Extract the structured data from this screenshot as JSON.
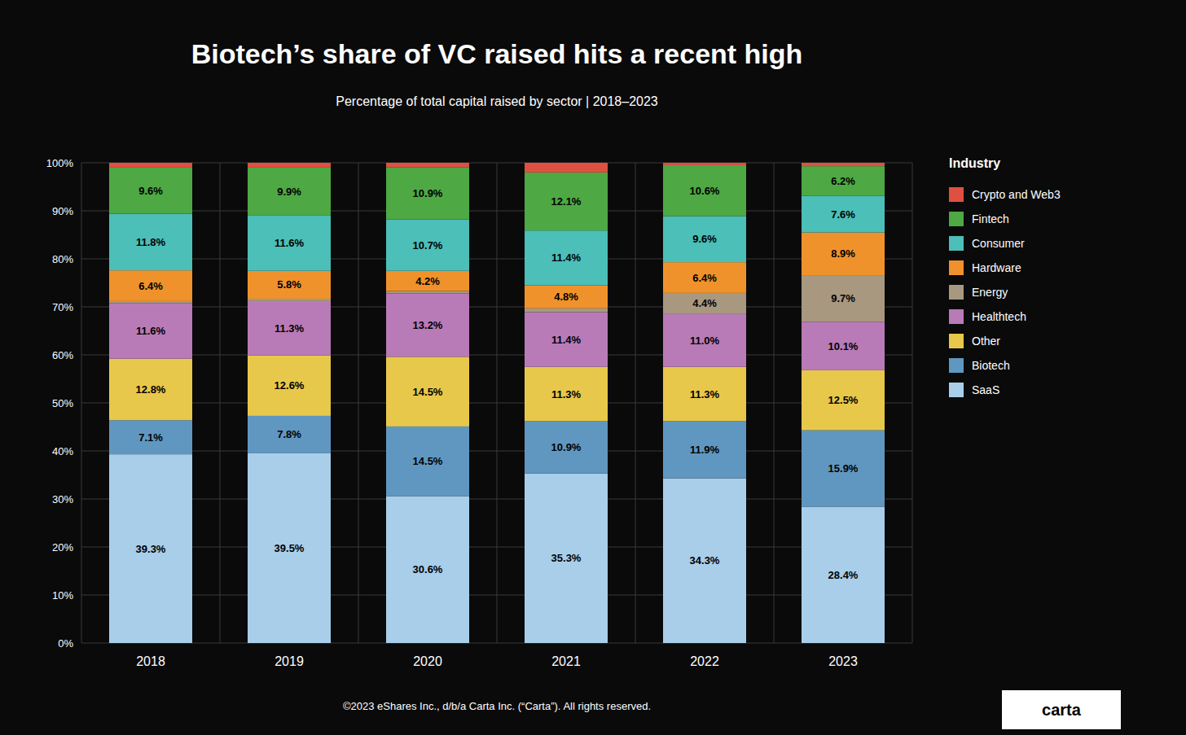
{
  "chart_data": {
    "type": "bar",
    "stacked": true,
    "title": "Biotech’s share of VC raised hits a recent high",
    "subtitle": "Percentage of total capital raised by sector | 2018–2023",
    "annotations": [
      "©2023 eShares Inc., d/b/a Carta Inc. (“Carta”). All rights reserved.",
      "carta"
    ],
    "legend_title": "Industry",
    "legend": "right",
    "grid": true,
    "data_labels": true,
    "categories": [
      "2018",
      "2019",
      "2020",
      "2021",
      "2022",
      "2023"
    ],
    "ylim": [
      0,
      100
    ],
    "yticks": [
      {
        "value": 0,
        "label": "0%"
      },
      {
        "value": 10,
        "label": "10%"
      },
      {
        "value": 20,
        "label": "20%"
      },
      {
        "value": 30,
        "label": "30%"
      },
      {
        "value": 40,
        "label": "40%"
      },
      {
        "value": 50,
        "label": "50%"
      },
      {
        "value": 60,
        "label": "60%"
      },
      {
        "value": 70,
        "label": "70%"
      },
      {
        "value": 80,
        "label": "80%"
      },
      {
        "value": 90,
        "label": "90%"
      },
      {
        "value": 100,
        "label": "100%"
      }
    ],
    "series": [
      {
        "name": "SaaS",
        "color": "#A8CEEA",
        "values": [
          39.3,
          39.5,
          30.6,
          35.3,
          34.3,
          28.4
        ],
        "value_labels": [
          "39.3%",
          "39.5%",
          "30.6%",
          "35.3%",
          "34.3%",
          "28.4%"
        ]
      },
      {
        "name": "Biotech",
        "color": "#6097C0",
        "values": [
          7.1,
          7.8,
          14.5,
          10.9,
          11.9,
          15.9
        ],
        "value_labels": [
          "7.1%",
          "7.8%",
          "14.5%",
          "10.9%",
          "11.9%",
          "15.9%"
        ]
      },
      {
        "name": "Other",
        "color": "#E8C84A",
        "values": [
          12.8,
          12.6,
          14.5,
          11.3,
          11.3,
          12.5
        ],
        "value_labels": [
          "12.8%",
          "12.6%",
          "14.5%",
          "11.3%",
          "11.3%",
          "12.5%"
        ]
      },
      {
        "name": "Healthtech",
        "color": "#B87BB8",
        "values": [
          11.6,
          11.3,
          13.2,
          11.4,
          11.0,
          10.1
        ],
        "value_labels": [
          "11.6%",
          "11.3%",
          "13.2%",
          "11.4%",
          "11.0%",
          "10.1%"
        ]
      },
      {
        "name": "Energy",
        "color": "#A89880",
        "values": [
          0.4,
          0.5,
          0.5,
          0.8,
          4.4,
          9.7
        ],
        "value_labels": [
          null,
          null,
          null,
          null,
          "4.4%",
          "9.7%"
        ]
      },
      {
        "name": "Hardware",
        "color": "#F0922B",
        "values": [
          6.4,
          5.8,
          4.2,
          4.8,
          6.4,
          8.9
        ],
        "value_labels": [
          "6.4%",
          "5.8%",
          "4.2%",
          "4.8%",
          "6.4%",
          "8.9%"
        ]
      },
      {
        "name": "Consumer",
        "color": "#4BBFB8",
        "values": [
          11.8,
          11.6,
          10.7,
          11.4,
          9.6,
          7.6
        ],
        "value_labels": [
          "11.8%",
          "11.6%",
          "10.7%",
          "11.4%",
          "9.6%",
          "7.6%"
        ]
      },
      {
        "name": "Fintech",
        "color": "#4EA843",
        "values": [
          9.6,
          9.9,
          10.9,
          12.1,
          10.6,
          6.2
        ],
        "value_labels": [
          "9.6%",
          "9.9%",
          "10.9%",
          "12.1%",
          "10.6%",
          "6.2%"
        ]
      },
      {
        "name": "Crypto and Web3",
        "color": "#E05040",
        "values": [
          1.0,
          1.0,
          0.9,
          2.0,
          0.5,
          0.7
        ],
        "value_labels": [
          null,
          null,
          null,
          null,
          null,
          null
        ]
      }
    ]
  }
}
